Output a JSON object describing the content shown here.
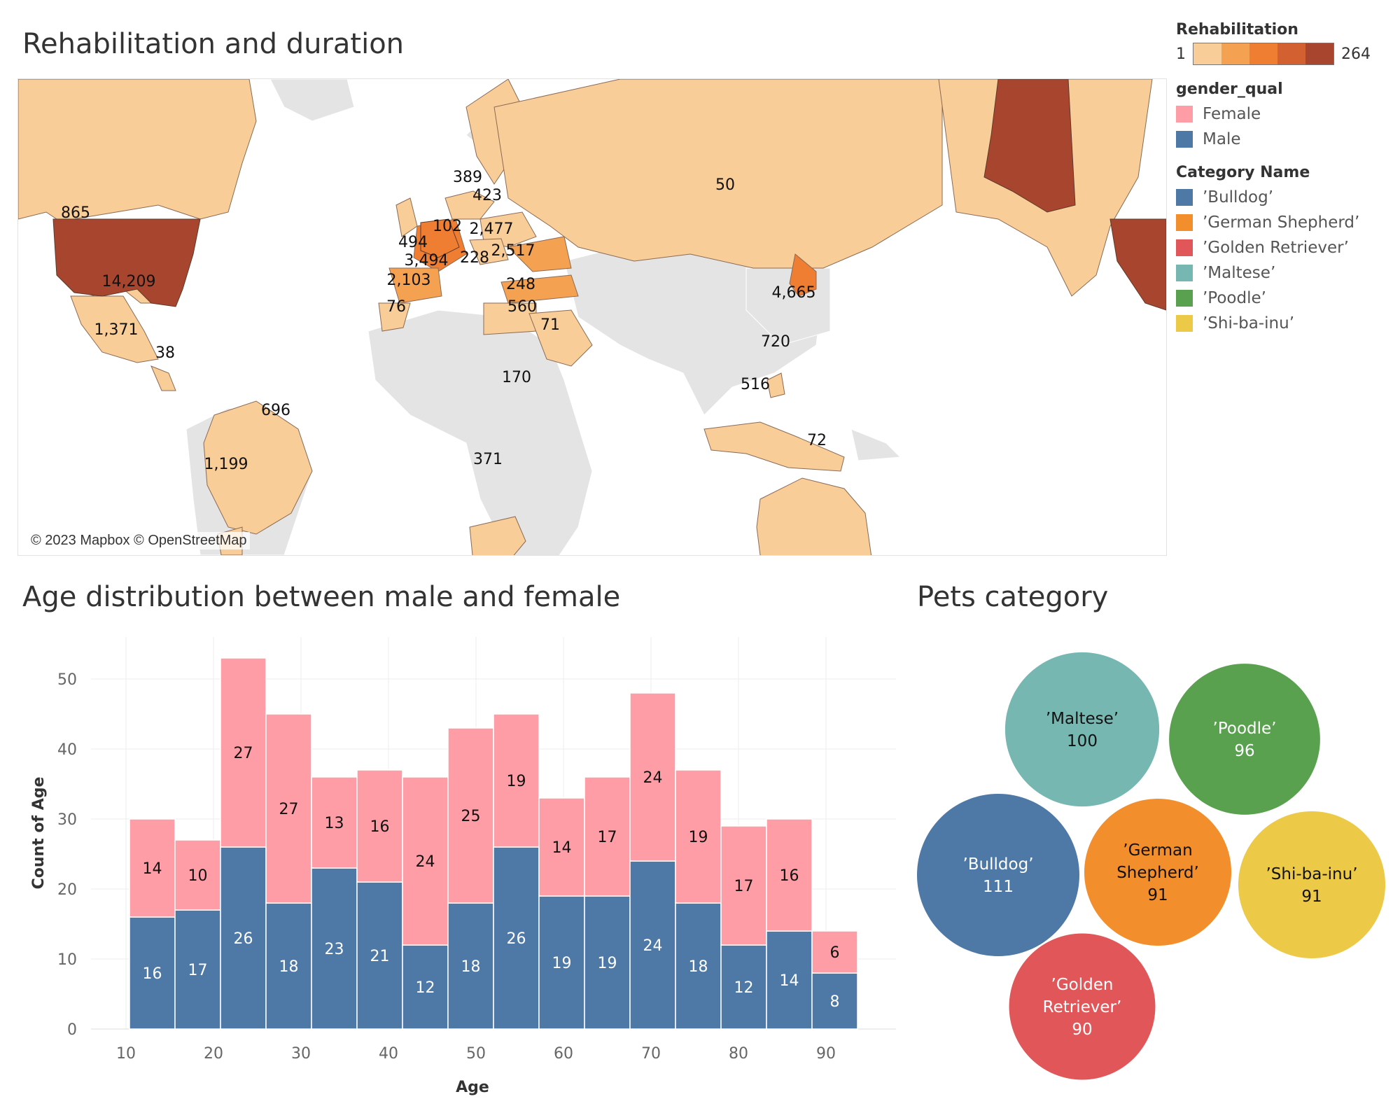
{
  "titles": {
    "map": "Rehabilitation and duration",
    "histogram": "Age distribution between male and female",
    "bubbles": "Pets category"
  },
  "map": {
    "attribution": "© 2023 Mapbox © OpenStreetMap",
    "color_scale": [
      "#f9cd98",
      "#f4a251",
      "#ef7e32",
      "#d36031",
      "#a8452f"
    ],
    "labels": [
      {
        "country": "Canada",
        "value": "865"
      },
      {
        "country": "United States",
        "value": "14,209"
      },
      {
        "country": "Mexico",
        "value": "1,371"
      },
      {
        "country": "Central America",
        "value": "38"
      },
      {
        "country": "Brazil",
        "value": "696"
      },
      {
        "country": "Argentina",
        "value": "1,199"
      },
      {
        "country": "Norway",
        "value": "389"
      },
      {
        "country": "Sweden",
        "value": "423"
      },
      {
        "country": "Denmark",
        "value": "102"
      },
      {
        "country": "Poland",
        "value": "2,477"
      },
      {
        "country": "United Kingdom",
        "value": "494"
      },
      {
        "country": "France",
        "value": "3,494"
      },
      {
        "country": "Austria",
        "value": "228"
      },
      {
        "country": "Romania",
        "value": "2,517"
      },
      {
        "country": "Spain",
        "value": "2,103"
      },
      {
        "country": "Turkey",
        "value": "248"
      },
      {
        "country": "Morocco",
        "value": "76"
      },
      {
        "country": "Egypt",
        "value": "560"
      },
      {
        "country": "Saudi Arabia",
        "value": "71"
      },
      {
        "country": "Russia",
        "value": "50"
      },
      {
        "country": "Japan",
        "value": "4,665"
      },
      {
        "country": "Philippines",
        "value": "720"
      },
      {
        "country": "Indonesia",
        "value": "516"
      },
      {
        "country": "Kenya",
        "value": "170"
      },
      {
        "country": "South Africa",
        "value": "371"
      },
      {
        "country": "Australia",
        "value": "72"
      }
    ]
  },
  "legend": {
    "rehab_title": "Rehabilitation",
    "rehab_min": "1",
    "rehab_max": "264",
    "gender_title": "gender_qual",
    "genders": [
      {
        "label": "Female",
        "color": "#ff9da7"
      },
      {
        "label": "Male",
        "color": "#4e79a7"
      }
    ],
    "category_title": "Category Name",
    "categories": [
      {
        "label": "’Bulldog’",
        "color": "#4e79a7"
      },
      {
        "label": "’German Shepherd’",
        "color": "#f28e2b"
      },
      {
        "label": "’Golden Retriever’",
        "color": "#e15759"
      },
      {
        "label": "’Maltese’",
        "color": "#76b7b2"
      },
      {
        "label": "’Poodle’",
        "color": "#59a14f"
      },
      {
        "label": "’Shi-ba-inu’",
        "color": "#edc948"
      }
    ]
  },
  "chart_data": [
    {
      "type": "bar",
      "stacked": true,
      "title": "Age distribution between male and female",
      "xlabel": "Age",
      "ylabel": "Count of Age",
      "x_ticks": [
        10,
        20,
        30,
        40,
        50,
        60,
        70,
        80,
        90
      ],
      "y_ticks": [
        0,
        10,
        20,
        30,
        40,
        50
      ],
      "xlim": [
        6,
        98
      ],
      "ylim": [
        0,
        56
      ],
      "bin_width": 5.2,
      "bin_starts": [
        10.4,
        15.6,
        20.8,
        26.0,
        31.2,
        36.4,
        41.6,
        46.8,
        52.0,
        57.2,
        62.4,
        67.6,
        72.8,
        78.0,
        83.2,
        88.4
      ],
      "series": [
        {
          "name": "Male",
          "color": "#4e79a7",
          "values": [
            16,
            17,
            26,
            18,
            23,
            21,
            12,
            18,
            26,
            19,
            19,
            24,
            18,
            12,
            14,
            8
          ]
        },
        {
          "name": "Female",
          "color": "#ff9da7",
          "values": [
            14,
            10,
            27,
            27,
            13,
            16,
            24,
            25,
            19,
            14,
            17,
            24,
            19,
            17,
            16,
            6
          ]
        }
      ]
    },
    {
      "type": "bubble",
      "title": "Pets category",
      "items": [
        {
          "label": "’Maltese’",
          "value": 100,
          "color": "#76b7b2"
        },
        {
          "label": "’Poodle’",
          "value": 96,
          "color": "#59a14f"
        },
        {
          "label": "’Bulldog’",
          "value": 111,
          "color": "#4e79a7"
        },
        {
          "label": "’German Shepherd’",
          "value": 91,
          "color": "#f28e2b"
        },
        {
          "label": "’Shi-ba-inu’",
          "value": 91,
          "color": "#edc948"
        },
        {
          "label": "’Golden Retriever’",
          "value": 90,
          "color": "#e15759"
        }
      ]
    }
  ]
}
